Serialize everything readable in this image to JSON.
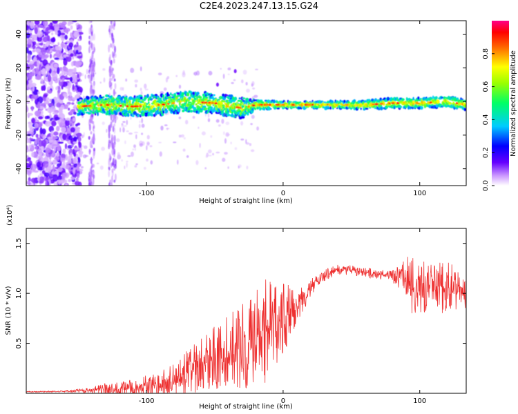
{
  "title": "C2E4.2023.247.13.15.G24",
  "chart_data": [
    {
      "type": "heatmap",
      "xlabel": "Height of straight line (km)",
      "ylabel": "Frequency (Hz)",
      "xlim": [
        -188,
        134
      ],
      "ylim": [
        -50,
        48
      ],
      "x_ticks": [
        "-100",
        "0",
        "100"
      ],
      "y_ticks": [
        "-40",
        "-20",
        "0",
        "20",
        "40"
      ],
      "colorbar": {
        "label": "Normalized spectral amplitude",
        "range": [
          0.0,
          1.0
        ],
        "ticks": [
          "0.0",
          "0.2",
          "0.4",
          "0.6",
          "0.8"
        ]
      },
      "description_values": {
        "band_center_hz": [
          [
            -150,
            -3
          ],
          [
            -130,
            -2
          ],
          [
            -110,
            -3
          ],
          [
            -90,
            -2
          ],
          [
            -70,
            0
          ],
          [
            -50,
            -1
          ],
          [
            -30,
            -4
          ],
          [
            -20,
            -2
          ],
          [
            -10,
            -2
          ],
          [
            0,
            -2
          ],
          [
            20,
            -2
          ],
          [
            40,
            -2
          ],
          [
            60,
            -2
          ],
          [
            80,
            -1
          ],
          [
            100,
            -1
          ],
          [
            120,
            0
          ],
          [
            134,
            -2
          ]
        ],
        "band_halfwidth_hz": [
          [
            -150,
            5
          ],
          [
            -100,
            6
          ],
          [
            -60,
            6
          ],
          [
            -30,
            6
          ],
          [
            -20,
            3
          ],
          [
            0,
            2
          ],
          [
            40,
            2
          ],
          [
            80,
            3
          ],
          [
            134,
            3
          ]
        ],
        "noise_region_x": [
          -188,
          -148
        ],
        "peak_x": [
          -140,
          -12,
          10,
          80,
          95,
          110
        ]
      }
    },
    {
      "type": "line",
      "xlabel": "Height of straight line (km)",
      "ylabel": "SNR (10 * v/v)",
      "y_multiplier": "(x10⁴)",
      "xlim": [
        -188,
        134
      ],
      "ylim": [
        0,
        16500
      ],
      "x_ticks": [
        "-100",
        "0",
        "100"
      ],
      "y_ticks": [
        "0.5",
        "1.0",
        "1.5"
      ],
      "color": "#ee3030",
      "envelope": {
        "x": [
          -188,
          -160,
          -140,
          -130,
          -110,
          -90,
          -80,
          -70,
          -60,
          -50,
          -40,
          -30,
          -20,
          -15,
          -10,
          -5,
          0,
          5,
          10,
          15,
          20,
          25,
          30,
          40,
          50,
          60,
          70,
          80,
          85,
          90,
          95,
          100,
          110,
          120,
          134
        ],
        "base": [
          150,
          200,
          300,
          400,
          500,
          900,
          1300,
          2000,
          2800,
          3500,
          4200,
          4800,
          5500,
          6000,
          6500,
          7000,
          7500,
          8200,
          9000,
          9800,
          10500,
          11200,
          11800,
          12400,
          12300,
          12100,
          11900,
          11700,
          11600,
          11400,
          10800,
          10500,
          10600,
          10500,
          10800
        ],
        "amp": [
          50,
          80,
          300,
          700,
          900,
          1300,
          1700,
          2300,
          2800,
          3200,
          3600,
          4300,
          5000,
          5200,
          5200,
          4500,
          3500,
          2800,
          2000,
          1500,
          1000,
          700,
          600,
          500,
          500,
          500,
          500,
          600,
          1500,
          2200,
          3200,
          2800,
          2500,
          2600,
          2500
        ]
      }
    }
  ]
}
